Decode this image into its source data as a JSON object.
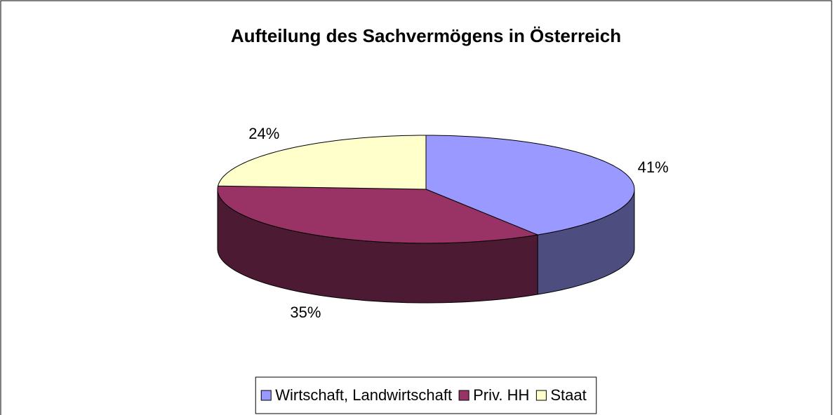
{
  "chart_data": {
    "type": "pie",
    "title": "Aufteilung des Sachvermögens in Österreich",
    "categories": [
      "Wirtschaft, Landwirtschaft",
      "Priv. HH",
      "Staat"
    ],
    "values": [
      41,
      35,
      24
    ],
    "value_labels": [
      "41%",
      "35%",
      "24%"
    ],
    "colors": [
      "#9999ff",
      "#993366",
      "#ffffcc"
    ],
    "legend": "bottom"
  }
}
